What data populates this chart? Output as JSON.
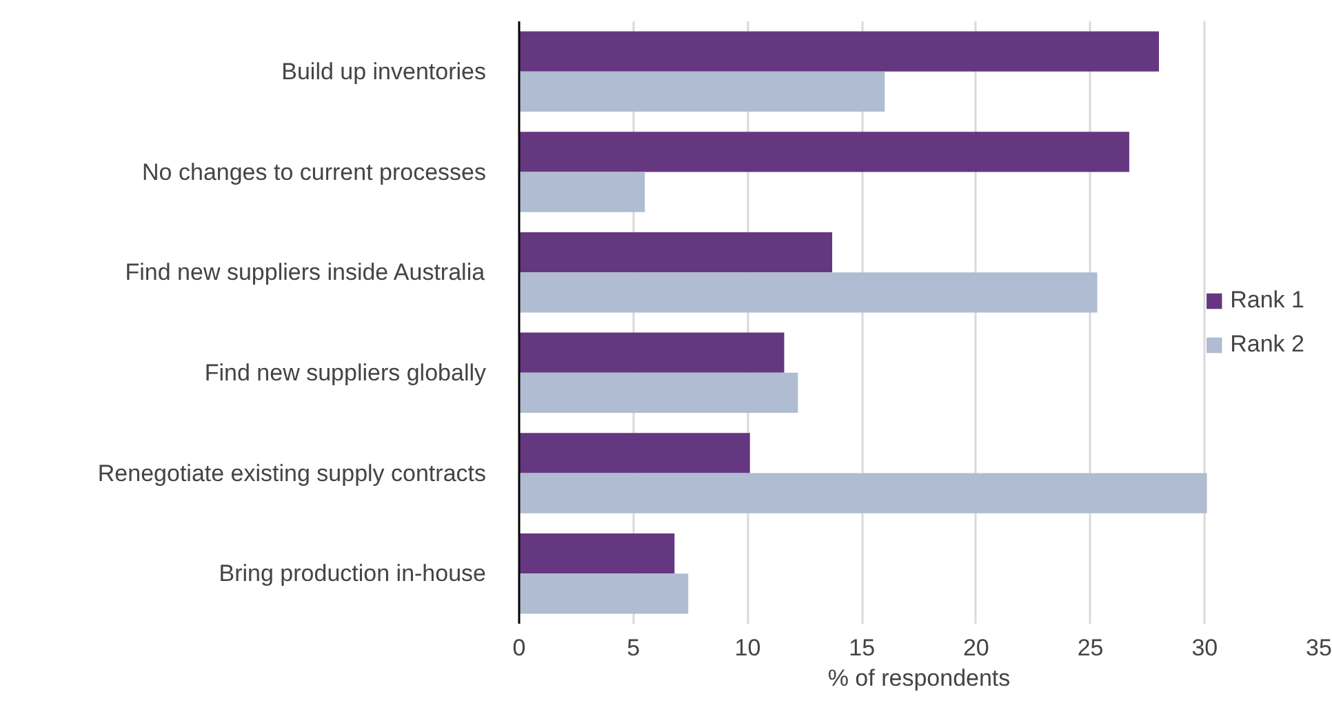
{
  "chart_data": {
    "type": "bar",
    "orientation": "horizontal",
    "xlabel": "% of respondents",
    "categories": [
      "Build up inventories",
      "No changes to current processes",
      "Find new suppliers inside Australia",
      "Find new suppliers globally",
      "Renegotiate existing supply contracts",
      "Bring production in-house"
    ],
    "series": [
      {
        "name": "Rank 1",
        "color": "#653780",
        "values": [
          28.0,
          26.7,
          13.7,
          11.6,
          10.1,
          6.8
        ]
      },
      {
        "name": "Rank 2",
        "color": "#afbcd1",
        "values": [
          16.0,
          5.5,
          25.3,
          12.2,
          30.1,
          7.4
        ]
      }
    ],
    "xlim": [
      0,
      35
    ],
    "xticks": [
      0,
      5,
      10,
      15,
      20,
      25,
      30,
      35
    ],
    "grid": "x",
    "legend": "right"
  }
}
